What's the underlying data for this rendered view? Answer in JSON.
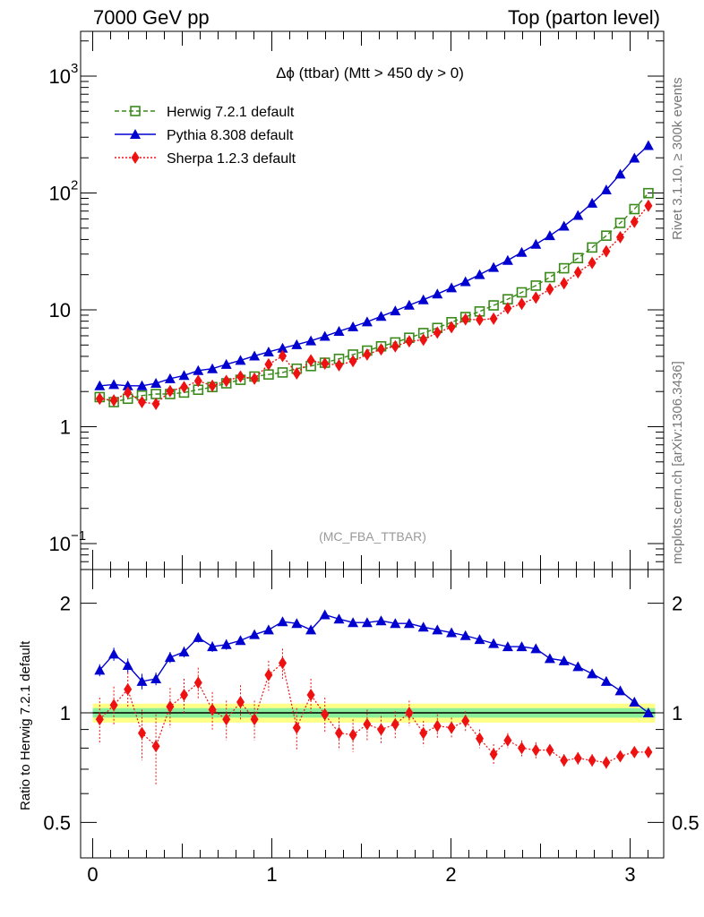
{
  "header": {
    "left": "7000 GeV pp",
    "right": "Top (parton level)"
  },
  "side_labels": {
    "rivet": "Rivet 3.1.10, ≥ 300k events",
    "reference": "mcplots.cern.ch [arXiv:1306.3436]"
  },
  "ratio_ylabel": "Ratio to Herwig 7.2.1 default",
  "watermark": "(MC_FBA_TTBAR)",
  "chart_data": {
    "type": "line",
    "title": "Δϕ (ttbar) (Mtt > 450 dy > 0)",
    "y_scale": "log",
    "ylim": [
      0.07,
      2200
    ],
    "xlim": [
      -0.05,
      3.2
    ],
    "x_ticks": [
      "0",
      "1",
      "2",
      "3"
    ],
    "y_ticks": [
      "10^-1",
      "1",
      "10",
      "10^2",
      "10^3"
    ],
    "x": [
      0.039,
      0.118,
      0.196,
      0.275,
      0.353,
      0.432,
      0.51,
      0.589,
      0.668,
      0.746,
      0.825,
      0.903,
      0.982,
      1.06,
      1.139,
      1.218,
      1.296,
      1.375,
      1.453,
      1.532,
      1.61,
      1.689,
      1.767,
      1.846,
      1.924,
      2.003,
      2.081,
      2.16,
      2.238,
      2.317,
      2.395,
      2.474,
      2.552,
      2.631,
      2.709,
      2.788,
      2.867,
      2.945,
      3.024,
      3.102
    ],
    "series": [
      {
        "name": "Herwig 7.2.1 default",
        "color": "#3a8a1a",
        "marker": "open-square",
        "line": "dashed",
        "values": [
          0.32,
          0.29,
          0.31,
          0.33,
          0.34,
          0.34,
          0.35,
          0.37,
          0.39,
          0.42,
          0.45,
          0.48,
          0.5,
          0.52,
          0.56,
          0.59,
          0.63,
          0.68,
          0.74,
          0.8,
          0.87,
          0.94,
          1.03,
          1.13,
          1.25,
          1.4,
          1.55,
          1.73,
          1.95,
          2.2,
          2.52,
          2.88,
          3.4,
          4.05,
          4.95,
          6.1,
          7.7,
          9.9,
          13.0,
          17.8
        ]
      },
      {
        "name": "Pythia 8.308 default",
        "color": "#0000d0",
        "marker": "triangle",
        "line": "solid",
        "values": [
          0.4,
          0.41,
          0.4,
          0.4,
          0.42,
          0.46,
          0.49,
          0.54,
          0.56,
          0.61,
          0.66,
          0.72,
          0.78,
          0.84,
          0.9,
          0.97,
          1.06,
          1.17,
          1.28,
          1.41,
          1.57,
          1.75,
          1.96,
          2.18,
          2.44,
          2.76,
          3.11,
          3.58,
          4.12,
          4.73,
          5.55,
          6.5,
          7.7,
          9.3,
          11.5,
          14.6,
          19.0,
          25.9,
          35.5,
          45.5
        ]
      },
      {
        "name": "Sherpa 1.2.3 default",
        "color": "#ee1111",
        "marker": "diamond",
        "line": "dotted",
        "values": [
          0.31,
          0.3,
          0.35,
          0.29,
          0.28,
          0.36,
          0.39,
          0.44,
          0.4,
          0.44,
          0.48,
          0.46,
          0.61,
          0.72,
          0.51,
          0.66,
          0.62,
          0.6,
          0.65,
          0.74,
          0.82,
          0.87,
          0.96,
          0.99,
          1.14,
          1.27,
          1.48,
          1.47,
          1.5,
          1.84,
          2.01,
          2.27,
          2.68,
          3.01,
          3.74,
          4.5,
          5.66,
          7.48,
          10.1,
          13.9
        ]
      }
    ],
    "y_display_scale": 5.6,
    "ratio": {
      "ylabel": "Ratio to Herwig 7.2.1 default",
      "ylim": [
        0.4,
        2.4
      ],
      "y_ticks": [
        "0.5",
        "1",
        "2"
      ],
      "band_yellow": 0.06,
      "band_green": 0.03,
      "pythia": [
        1.31,
        1.45,
        1.35,
        1.22,
        1.24,
        1.42,
        1.47,
        1.61,
        1.52,
        1.54,
        1.58,
        1.64,
        1.69,
        1.78,
        1.76,
        1.69,
        1.86,
        1.81,
        1.77,
        1.77,
        1.79,
        1.76,
        1.76,
        1.72,
        1.69,
        1.66,
        1.63,
        1.59,
        1.55,
        1.52,
        1.52,
        1.5,
        1.41,
        1.39,
        1.34,
        1.28,
        1.22,
        1.15,
        1.07,
        1.0
      ],
      "pythia_err": [
        0.05,
        0.06,
        0.06,
        0.06,
        0.05,
        0.05,
        0.05,
        0.05,
        0.05,
        0.05,
        0.04,
        0.04,
        0.04,
        0.04,
        0.04,
        0.04,
        0.03,
        0.03,
        0.03,
        0.03,
        0.03,
        0.03,
        0.03,
        0.03,
        0.02,
        0.02,
        0.02,
        0.02,
        0.02,
        0.02,
        0.02,
        0.02,
        0.02,
        0.02,
        0.02,
        0.02,
        0.02,
        0.02,
        0.01,
        0.01
      ],
      "sherpa": [
        0.96,
        1.05,
        1.16,
        0.88,
        0.81,
        1.04,
        1.12,
        1.21,
        1.02,
        0.96,
        1.07,
        0.96,
        1.27,
        1.37,
        0.91,
        1.12,
        0.99,
        0.88,
        0.87,
        0.93,
        0.9,
        0.93,
        1.0,
        0.88,
        0.92,
        0.91,
        0.95,
        0.85,
        0.77,
        0.84,
        0.8,
        0.79,
        0.79,
        0.74,
        0.75,
        0.74,
        0.73,
        0.76,
        0.78,
        0.78
      ],
      "sherpa_err": [
        0.14,
        0.13,
        0.13,
        0.14,
        0.18,
        0.13,
        0.12,
        0.12,
        0.12,
        0.12,
        0.12,
        0.12,
        0.12,
        0.13,
        0.12,
        0.12,
        0.11,
        0.09,
        0.09,
        0.09,
        0.08,
        0.08,
        0.08,
        0.07,
        0.07,
        0.06,
        0.06,
        0.05,
        0.05,
        0.04,
        0.04,
        0.04,
        0.03,
        0.03,
        0.03,
        0.03,
        0.03,
        0.02,
        0.02,
        0.02
      ]
    }
  }
}
